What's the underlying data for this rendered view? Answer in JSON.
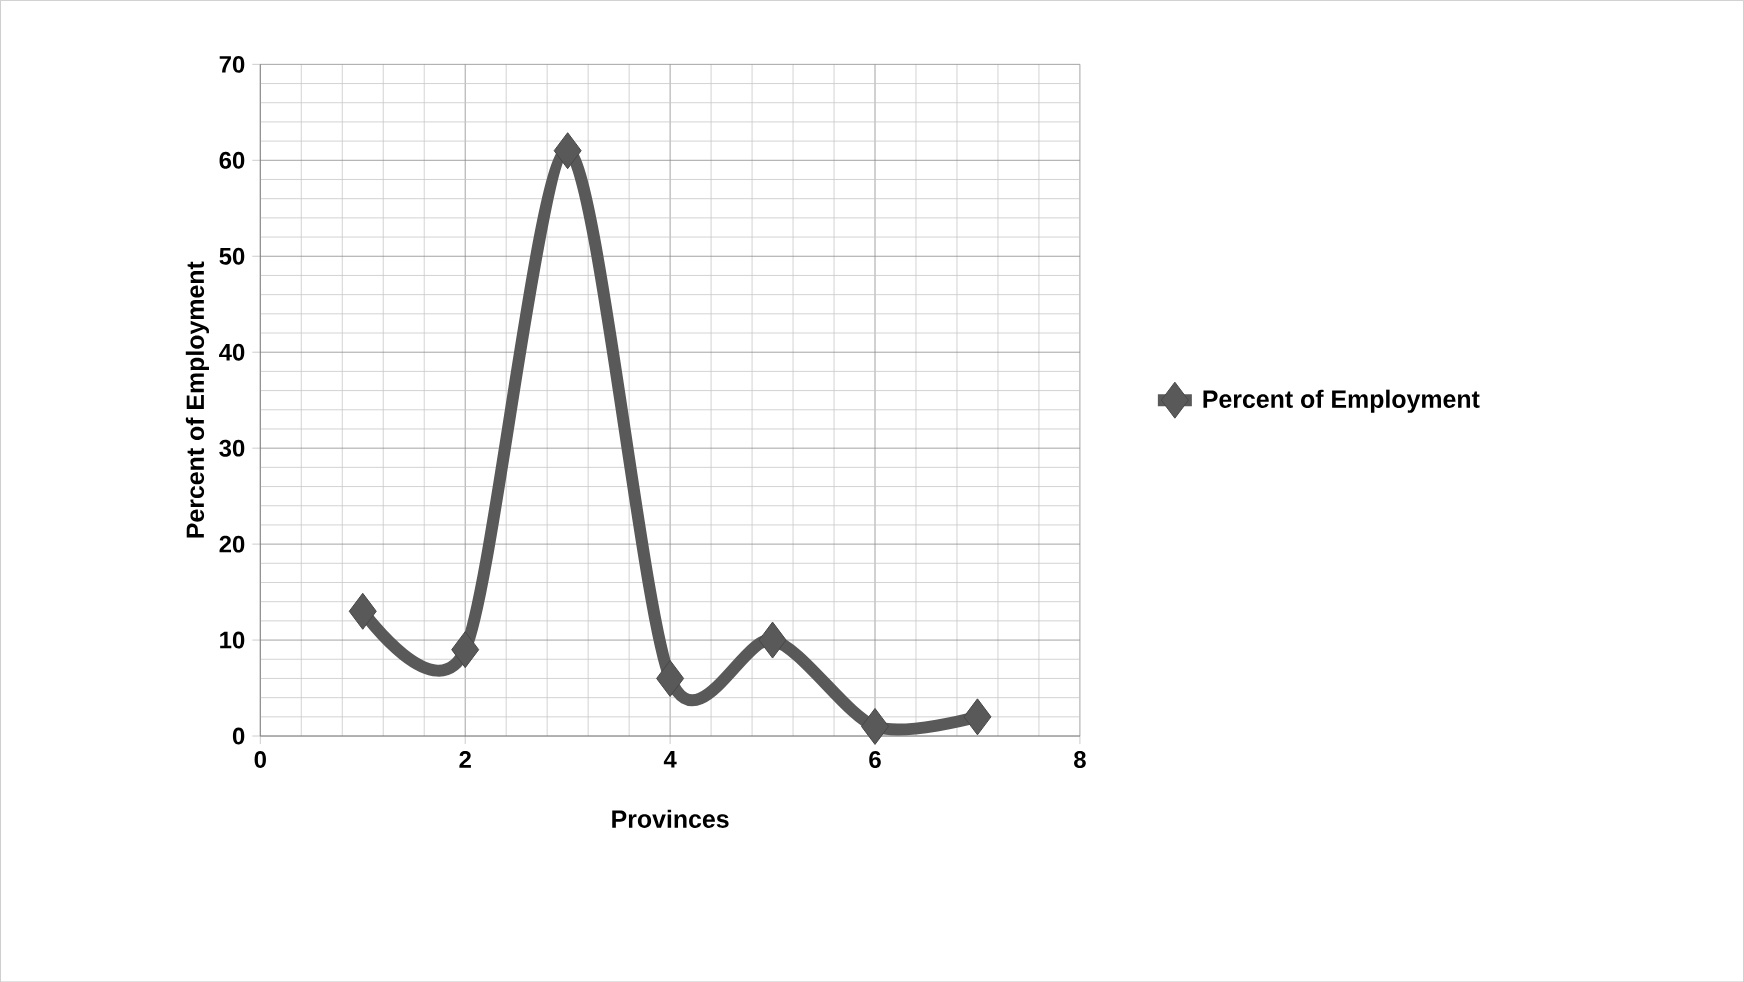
{
  "chart_data": {
    "type": "line",
    "xlabel": "Provinces",
    "ylabel": "Percent of Employment",
    "x": [
      1,
      2,
      3,
      4,
      5,
      6,
      7
    ],
    "series": [
      {
        "name": "Percent of Employment",
        "color": "#595959",
        "values": [
          13,
          9,
          61,
          6,
          10,
          1,
          2
        ]
      }
    ],
    "xlim": [
      0,
      8
    ],
    "ylim": [
      0,
      70
    ],
    "xticks": [
      0,
      2,
      4,
      6,
      8
    ],
    "yticks": [
      0,
      10,
      20,
      30,
      40,
      50,
      60,
      70
    ],
    "grid": true,
    "legend": "right",
    "marker": "diamond",
    "line_style": "solid"
  }
}
